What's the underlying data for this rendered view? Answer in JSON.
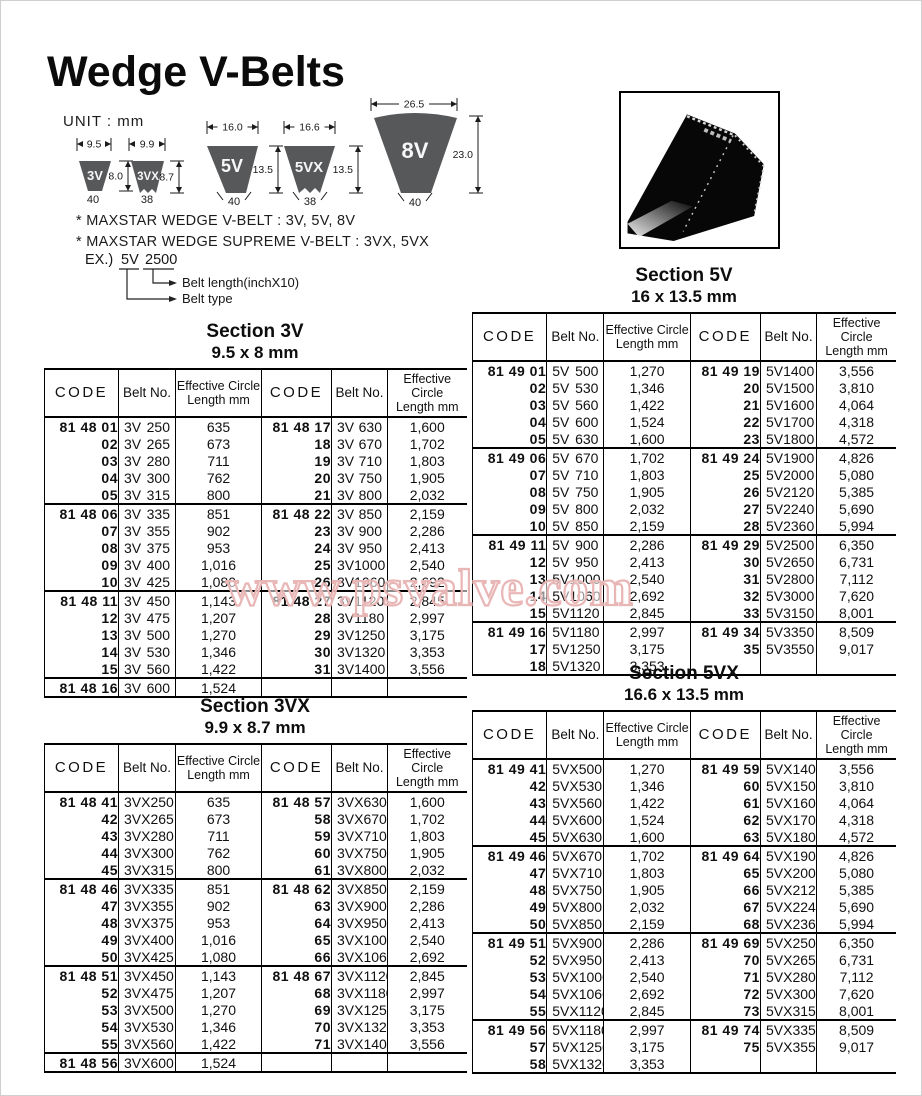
{
  "page": {
    "title": "Wedge V-Belts"
  },
  "colors": {
    "belt_fill": "#57585a",
    "belt_label": "#f7f7f7",
    "line": "#1a1a1a",
    "watermark_pink": "#e9b6b6"
  },
  "watermark": "www.psvalve.com",
  "header": {
    "unit_label": "UNIT : mm",
    "belts": [
      {
        "label": "3V",
        "top_width": "9.5",
        "height": "8.0",
        "angle": "40"
      },
      {
        "label": "3VX",
        "top_width": "9.9",
        "height": "8.7",
        "angle": "38"
      },
      {
        "label": "5V",
        "top_width": "16.0",
        "height": "13.5",
        "angle": "40"
      },
      {
        "label": "5VX",
        "top_width": "16.6",
        "height": "13.5",
        "angle": "38"
      },
      {
        "label": "8V",
        "top_width": "26.5",
        "height": "23.0",
        "angle": "40"
      }
    ],
    "notes": [
      "* MAXSTAR WEDGE V-BELT : 3V, 5V, 8V",
      "* MAXSTAR WEDGE SUPREME V-BELT : 3VX, 5VX"
    ],
    "example": {
      "label": "EX.)",
      "belt_type": "5V",
      "belt_length": "2500",
      "length_note": "Belt length(inchX10)",
      "type_note": "Belt type"
    }
  },
  "tables": [
    {
      "title": "Section 3V",
      "subtitle": "9.5 x 8 mm",
      "headers": [
        "CODE",
        "Belt No.",
        "Effective Circle\nLength mm",
        "CODE",
        "Belt No.",
        "Effective Circle\nLength mm"
      ],
      "rows": [
        [
          "81 48 01",
          "3V 250",
          "635",
          "81 48 17",
          "3V 630",
          "1,600"
        ],
        [
          "02",
          "3V 265",
          "673",
          "18",
          "3V 670",
          "1,702"
        ],
        [
          "03",
          "3V 280",
          "711",
          "19",
          "3V 710",
          "1,803"
        ],
        [
          "04",
          "3V 300",
          "762",
          "20",
          "3V 750",
          "1,905"
        ],
        [
          "05",
          "3V 315",
          "800",
          "21",
          "3V 800",
          "2,032"
        ],
        [
          "81 48 06",
          "3V 335",
          "851",
          "81 48 22",
          "3V 850",
          "2,159"
        ],
        [
          "07",
          "3V 355",
          "902",
          "23",
          "3V 900",
          "2,286"
        ],
        [
          "08",
          "3V 375",
          "953",
          "24",
          "3V 950",
          "2,413"
        ],
        [
          "09",
          "3V 400",
          "1,016",
          "25",
          "3V 1000",
          "2,540"
        ],
        [
          "10",
          "3V 425",
          "1,080",
          "26",
          "3V 1060",
          "2,692"
        ],
        [
          "81 48 11",
          "3V 450",
          "1,143",
          "81 48 27",
          "3V 1120",
          "2,845"
        ],
        [
          "12",
          "3V 475",
          "1,207",
          "28",
          "3V 1180",
          "2,997"
        ],
        [
          "13",
          "3V 500",
          "1,270",
          "29",
          "3V 1250",
          "3,175"
        ],
        [
          "14",
          "3V 530",
          "1,346",
          "30",
          "3V 1320",
          "3,353"
        ],
        [
          "15",
          "3V 560",
          "1,422",
          "31",
          "3V 1400",
          "3,556"
        ],
        [
          "81 48 16",
          "3V 600",
          "1,524",
          "",
          "",
          ""
        ]
      ]
    },
    {
      "title": "Section 5V",
      "subtitle": "16 x 13.5 mm",
      "headers": [
        "CODE",
        "Belt No.",
        "Effective Circle\nLength mm",
        "CODE",
        "Belt No.",
        "Effective Circle\nLength mm"
      ],
      "rows": [
        [
          "81 49 01",
          "5V 500",
          "1,270",
          "81 49 19",
          "5V 1400",
          "3,556"
        ],
        [
          "02",
          "5V 530",
          "1,346",
          "20",
          "5V 1500",
          "3,810"
        ],
        [
          "03",
          "5V 560",
          "1,422",
          "21",
          "5V 1600",
          "4,064"
        ],
        [
          "04",
          "5V 600",
          "1,524",
          "22",
          "5V 1700",
          "4,318"
        ],
        [
          "05",
          "5V 630",
          "1,600",
          "23",
          "5V 1800",
          "4,572"
        ],
        [
          "81 49 06",
          "5V 670",
          "1,702",
          "81 49 24",
          "5V 1900",
          "4,826"
        ],
        [
          "07",
          "5V 710",
          "1,803",
          "25",
          "5V 2000",
          "5,080"
        ],
        [
          "08",
          "5V 750",
          "1,905",
          "26",
          "5V 2120",
          "5,385"
        ],
        [
          "09",
          "5V 800",
          "2,032",
          "27",
          "5V 2240",
          "5,690"
        ],
        [
          "10",
          "5V 850",
          "2,159",
          "28",
          "5V 2360",
          "5,994"
        ],
        [
          "81 49 11",
          "5V 900",
          "2,286",
          "81 49 29",
          "5V 2500",
          "6,350"
        ],
        [
          "12",
          "5V 950",
          "2,413",
          "30",
          "5V 2650",
          "6,731"
        ],
        [
          "13",
          "5V 1000",
          "2,540",
          "31",
          "5V 2800",
          "7,112"
        ],
        [
          "14",
          "5V 1060",
          "2,692",
          "32",
          "5V 3000",
          "7,620"
        ],
        [
          "15",
          "5V 1120",
          "2,845",
          "33",
          "5V 3150",
          "8,001"
        ],
        [
          "81 49 16",
          "5V 1180",
          "2,997",
          "81 49 34",
          "5V 3350",
          "8,509"
        ],
        [
          "17",
          "5V 1250",
          "3,175",
          "35",
          "5V 3550",
          "9,017"
        ],
        [
          "18",
          "5V 1320",
          "3,353",
          "",
          "",
          ""
        ]
      ]
    },
    {
      "title": "Section 3VX",
      "subtitle": "9.9 x 8.7 mm",
      "headers": [
        "CODE",
        "Belt No.",
        "Effective Circle\nLength mm",
        "CODE",
        "Belt No.",
        "Effective Circle\nLength mm"
      ],
      "rows": [
        [
          "81 48 41",
          "3VX 250",
          "635",
          "81 48 57",
          "3VX 630",
          "1,600"
        ],
        [
          "42",
          "3VX 265",
          "673",
          "58",
          "3VX 670",
          "1,702"
        ],
        [
          "43",
          "3VX 280",
          "711",
          "59",
          "3VX 710",
          "1,803"
        ],
        [
          "44",
          "3VX 300",
          "762",
          "60",
          "3VX 750",
          "1,905"
        ],
        [
          "45",
          "3VX 315",
          "800",
          "61",
          "3VX 800",
          "2,032"
        ],
        [
          "81 48 46",
          "3VX 335",
          "851",
          "81 48 62",
          "3VX 850",
          "2,159"
        ],
        [
          "47",
          "3VX 355",
          "902",
          "63",
          "3VX 900",
          "2,286"
        ],
        [
          "48",
          "3VX 375",
          "953",
          "64",
          "3VX 950",
          "2,413"
        ],
        [
          "49",
          "3VX 400",
          "1,016",
          "65",
          "3VX 1000",
          "2,540"
        ],
        [
          "50",
          "3VX 425",
          "1,080",
          "66",
          "3VX 1060",
          "2,692"
        ],
        [
          "81 48 51",
          "3VX 450",
          "1,143",
          "81 48 67",
          "3VX 1120",
          "2,845"
        ],
        [
          "52",
          "3VX 475",
          "1,207",
          "68",
          "3VX 1180",
          "2,997"
        ],
        [
          "53",
          "3VX 500",
          "1,270",
          "69",
          "3VX 1250",
          "3,175"
        ],
        [
          "54",
          "3VX 530",
          "1,346",
          "70",
          "3VX 1320",
          "3,353"
        ],
        [
          "55",
          "3VX 560",
          "1,422",
          "71",
          "3VX 1400",
          "3,556"
        ],
        [
          "81 48 56",
          "3VX 600",
          "1,524",
          "",
          "",
          ""
        ]
      ]
    },
    {
      "title": "Section 5VX",
      "subtitle": "16.6 x 13.5 mm",
      "headers": [
        "CODE",
        "Belt No.",
        "Effective Circle\nLength mm",
        "CODE",
        "Belt No.",
        "Effective Circle\nLength mm"
      ],
      "rows": [
        [
          "81 49 41",
          "5VX 500",
          "1,270",
          "81 49 59",
          "5VX 1400",
          "3,556"
        ],
        [
          "42",
          "5VX 530",
          "1,346",
          "60",
          "5VX 1500",
          "3,810"
        ],
        [
          "43",
          "5VX 560",
          "1,422",
          "61",
          "5VX 1600",
          "4,064"
        ],
        [
          "44",
          "5VX 600",
          "1,524",
          "62",
          "5VX 1700",
          "4,318"
        ],
        [
          "45",
          "5VX 630",
          "1,600",
          "63",
          "5VX 1800",
          "4,572"
        ],
        [
          "81 49 46",
          "5VX 670",
          "1,702",
          "81 49 64",
          "5VX 1900",
          "4,826"
        ],
        [
          "47",
          "5VX 710",
          "1,803",
          "65",
          "5VX 2000",
          "5,080"
        ],
        [
          "48",
          "5VX 750",
          "1,905",
          "66",
          "5VX 2120",
          "5,385"
        ],
        [
          "49",
          "5VX 800",
          "2,032",
          "67",
          "5VX 2240",
          "5,690"
        ],
        [
          "50",
          "5VX 850",
          "2,159",
          "68",
          "5VX 2360",
          "5,994"
        ],
        [
          "81 49 51",
          "5VX 900",
          "2,286",
          "81 49 69",
          "5VX 2500",
          "6,350"
        ],
        [
          "52",
          "5VX 950",
          "2,413",
          "70",
          "5VX 2650",
          "6,731"
        ],
        [
          "53",
          "5VX 1000",
          "2,540",
          "71",
          "5VX 2800",
          "7,112"
        ],
        [
          "54",
          "5VX 1060",
          "2,692",
          "72",
          "5VX 3000",
          "7,620"
        ],
        [
          "55",
          "5VX 1120",
          "2,845",
          "73",
          "5VX 3150",
          "8,001"
        ],
        [
          "81 49 56",
          "5VX 1180",
          "2,997",
          "81 49 74",
          "5VX 3350",
          "8,509"
        ],
        [
          "57",
          "5VX 1250",
          "3,175",
          "75",
          "5VX 3550",
          "9,017"
        ],
        [
          "58",
          "5VX 1320",
          "3,353",
          "",
          "",
          ""
        ]
      ]
    }
  ]
}
